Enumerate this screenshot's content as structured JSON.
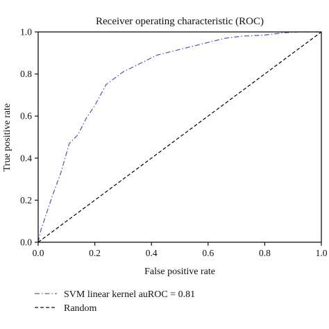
{
  "chart_data": {
    "type": "line",
    "title": "Receiver operating characteristic (ROC)",
    "xlabel": "False positive rate",
    "ylabel": "True positive rate",
    "xlim": [
      0.0,
      1.0
    ],
    "ylim": [
      0.0,
      1.0
    ],
    "xticks": [
      "0.0",
      "0.2",
      "0.4",
      "0.6",
      "0.8",
      "1.0"
    ],
    "yticks": [
      "0.0",
      "0.2",
      "0.4",
      "0.6",
      "0.8",
      "1.0"
    ],
    "grid": false,
    "legend_position": "below",
    "series": [
      {
        "name": "SVM linear kernel auROC = 0.81",
        "color": "#5a5fb8",
        "style": "dash-dot",
        "x": [
          0.0,
          0.01,
          0.03,
          0.05,
          0.08,
          0.11,
          0.14,
          0.17,
          0.2,
          0.24,
          0.3,
          0.36,
          0.42,
          0.48,
          0.54,
          0.6,
          0.66,
          0.72,
          0.8,
          0.86,
          0.92,
          1.0
        ],
        "y": [
          0.0,
          0.06,
          0.14,
          0.22,
          0.33,
          0.47,
          0.51,
          0.59,
          0.65,
          0.75,
          0.81,
          0.85,
          0.89,
          0.91,
          0.93,
          0.95,
          0.97,
          0.98,
          0.985,
          0.995,
          1.0,
          1.0
        ]
      },
      {
        "name": "Random",
        "color": "#111111",
        "style": "dashed",
        "x": [
          0.0,
          1.0
        ],
        "y": [
          0.0,
          1.0
        ]
      }
    ]
  }
}
